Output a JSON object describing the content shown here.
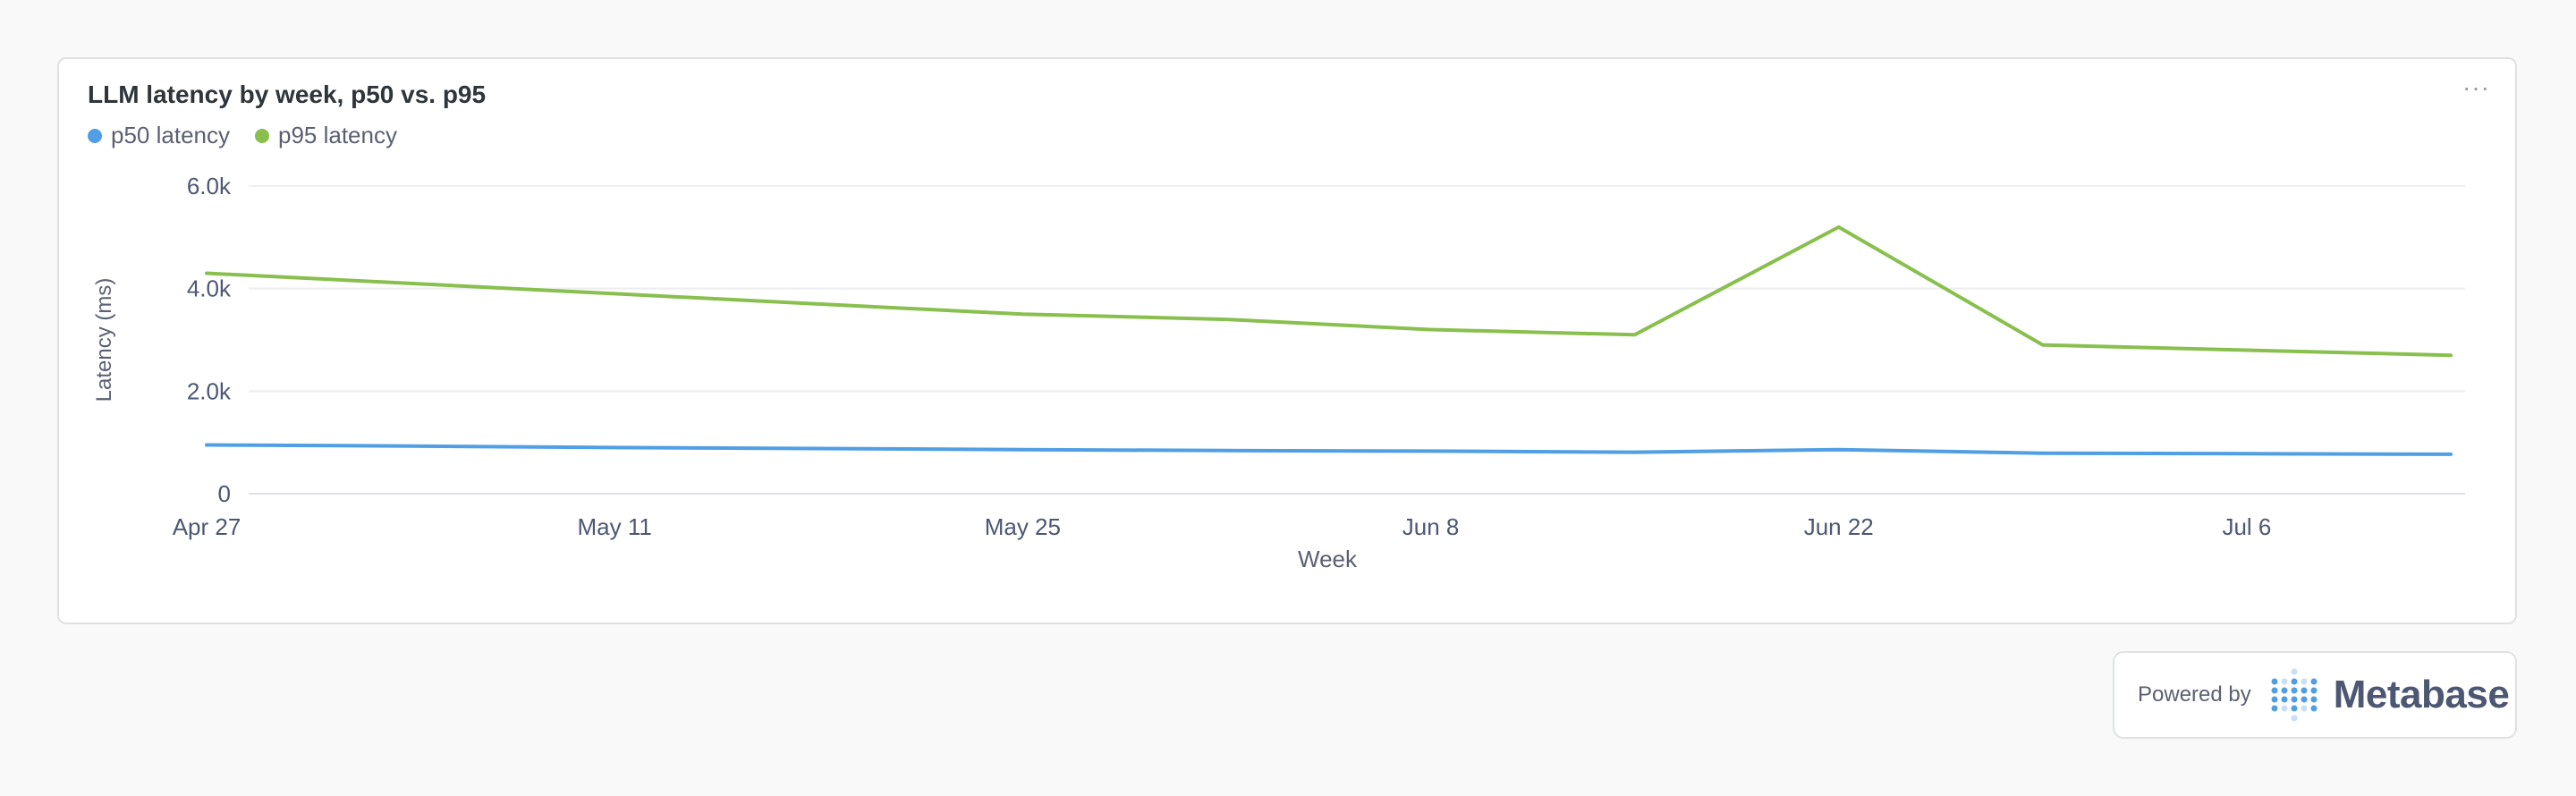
{
  "card": {
    "title": "LLM latency by week, p50 vs. p95",
    "more_label": "···"
  },
  "footer": {
    "powered_by": "Powered by",
    "brand": "Metabase"
  },
  "chart_data": {
    "type": "line",
    "title": "LLM latency by week, p50 vs. p95",
    "xlabel": "Week",
    "ylabel": "Latency (ms)",
    "ylim": [
      0,
      6000
    ],
    "y_ticks": [
      "0",
      "2.0k",
      "4.0k",
      "6.0k"
    ],
    "y_tick_values": [
      0,
      2000,
      4000,
      6000
    ],
    "x_tick_labels": [
      "Apr 27",
      "May 11",
      "May 25",
      "Jun 8",
      "Jun 22",
      "Jul 6"
    ],
    "x_tick_indices": [
      0,
      2,
      4,
      6,
      8,
      10
    ],
    "x": [
      "Apr 27",
      "May 4",
      "May 11",
      "May 18",
      "May 25",
      "Jun 1",
      "Jun 8",
      "Jun 15",
      "Jun 22",
      "Jun 29",
      "Jul 6",
      "Jul 13"
    ],
    "grid": true,
    "legend_position": "top-left",
    "series": [
      {
        "name": "p50 latency",
        "color": "#509ee3",
        "values": [
          950,
          930,
          900,
          880,
          860,
          840,
          830,
          810,
          860,
          790,
          780,
          770
        ]
      },
      {
        "name": "p95 latency",
        "color": "#88bf4d",
        "values": [
          4300,
          4100,
          3900,
          3700,
          3500,
          3400,
          3200,
          3100,
          5200,
          2900,
          2800,
          2700
        ]
      }
    ]
  }
}
